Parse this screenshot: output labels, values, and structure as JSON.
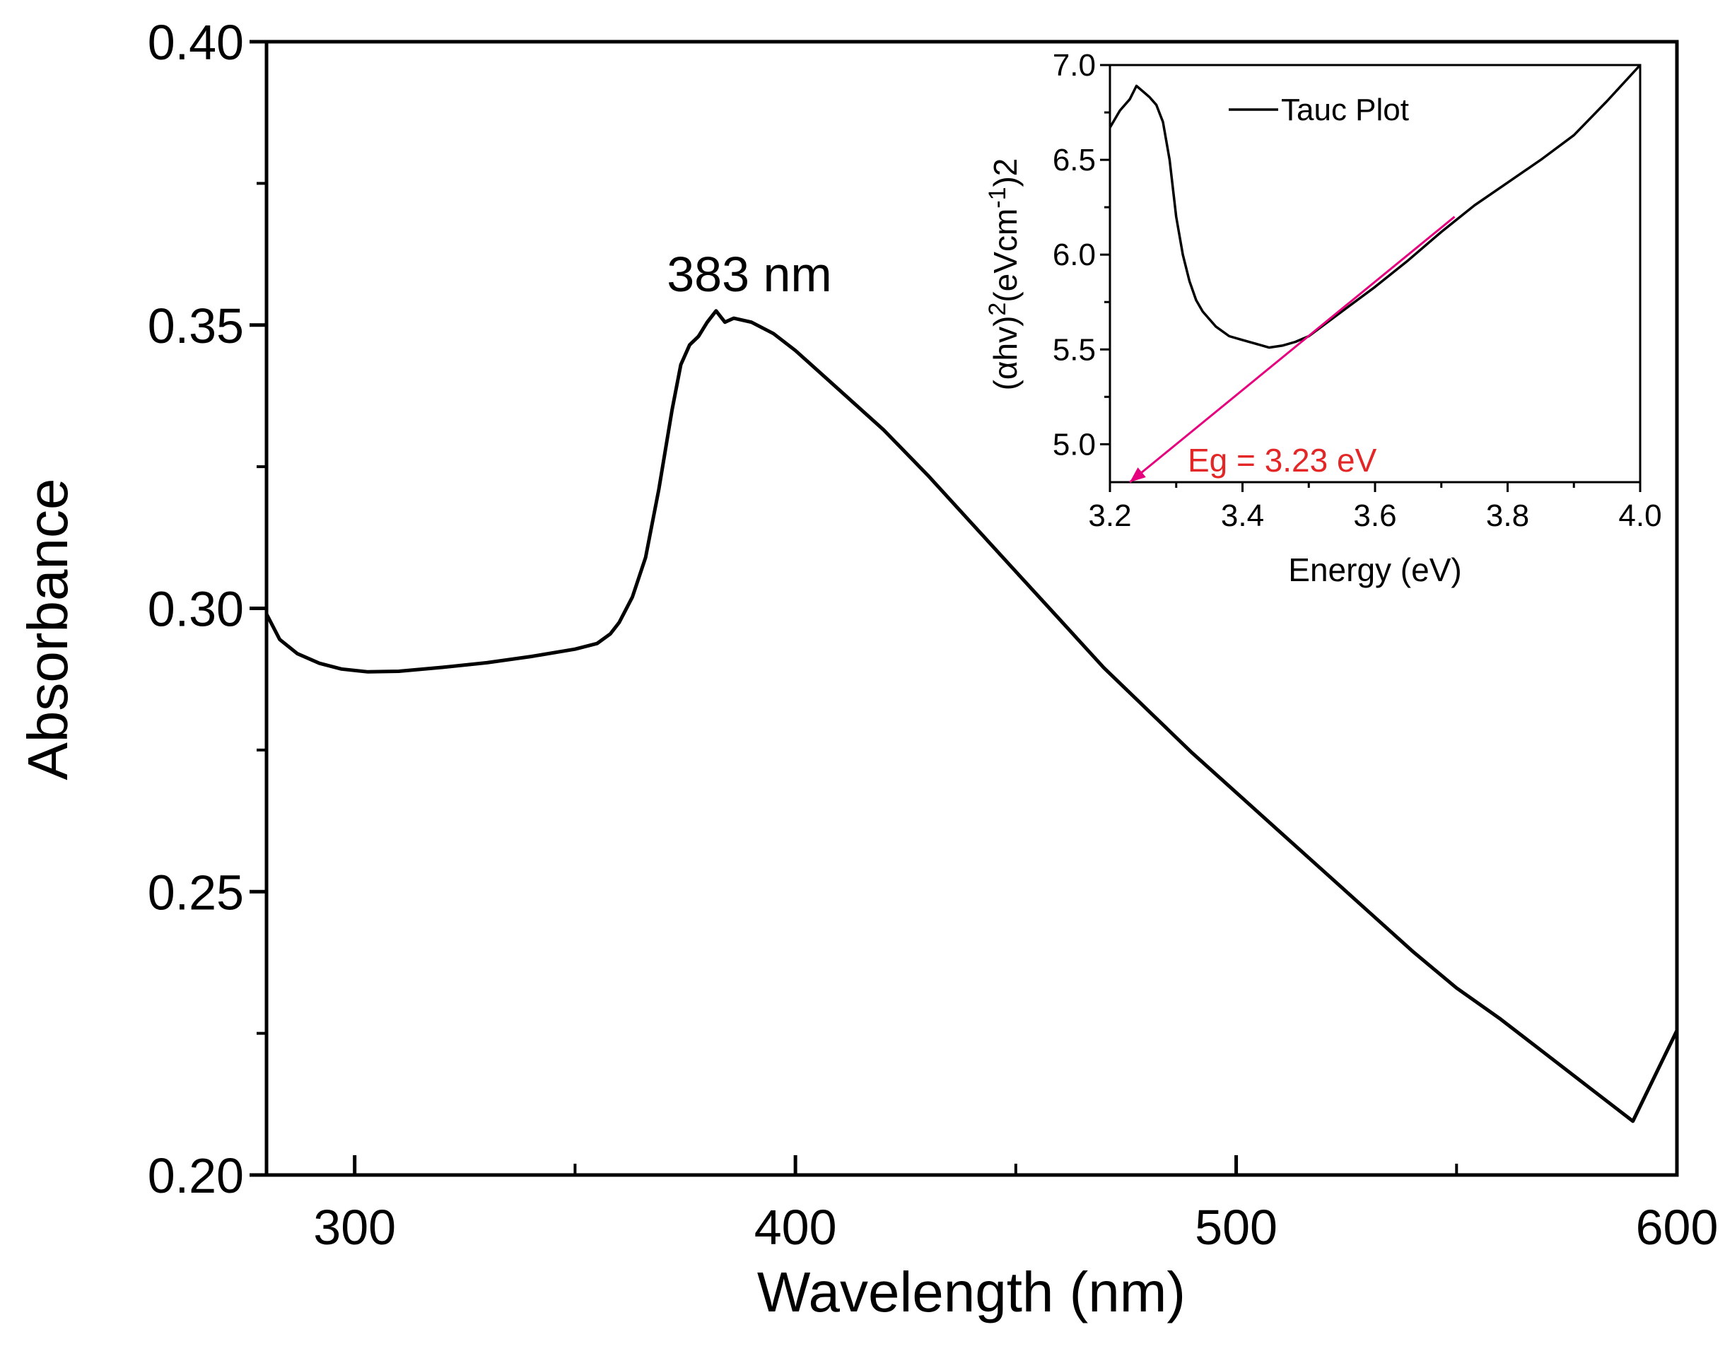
{
  "chart_data": [
    {
      "type": "line",
      "role": "main",
      "xlabel": "Wavelength (nm)",
      "ylabel": "Absorbance",
      "xlim": [
        280,
        600
      ],
      "ylim": [
        0.2,
        0.4
      ],
      "xticks": [
        300,
        400,
        500,
        600
      ],
      "xtick_labels": [
        "300",
        "400",
        "500",
        "600"
      ],
      "yticks": [
        0.2,
        0.25,
        0.3,
        0.35,
        0.4
      ],
      "ytick_labels": [
        "0.20",
        "0.25",
        "0.30",
        "0.35",
        "0.40"
      ],
      "annotation": {
        "text": "383 nm",
        "x": 383,
        "y": 0.353
      },
      "series": [
        {
          "name": "Absorbance",
          "color": "#000000",
          "x": [
            280,
            283,
            287,
            292,
            297,
            303,
            310,
            320,
            330,
            340,
            350,
            355,
            358,
            360,
            363,
            366,
            369,
            372,
            374,
            376,
            378,
            380,
            382,
            383,
            384,
            386,
            390,
            395,
            400,
            410,
            420,
            430,
            440,
            450,
            460,
            470,
            480,
            490,
            500,
            510,
            520,
            530,
            540,
            550,
            560,
            570,
            580,
            590,
            600
          ],
          "y": [
            0.299,
            0.2945,
            0.292,
            0.2903,
            0.2893,
            0.2888,
            0.2889,
            0.2896,
            0.2904,
            0.2915,
            0.2928,
            0.2938,
            0.2955,
            0.2975,
            0.302,
            0.309,
            0.321,
            0.335,
            0.343,
            0.3465,
            0.348,
            0.3505,
            0.3525,
            0.3515,
            0.3505,
            0.3512,
            0.3505,
            0.3485,
            0.3455,
            0.3385,
            0.3315,
            0.3235,
            0.315,
            0.3065,
            0.298,
            0.2895,
            0.282,
            0.2745,
            0.2675,
            0.2605,
            0.2535,
            0.2465,
            0.2395,
            0.233,
            0.2275,
            0.2215,
            0.2155,
            0.2095,
            0.2255
          ]
        }
      ]
    },
    {
      "type": "line",
      "role": "inset",
      "xlabel": "Energy (eV)",
      "ylabel": "(αhv)2(eVcm-1)2",
      "ylabel_parts": {
        "a": "(αhv)",
        "b": "2",
        "c": "(eVcm",
        "d": "-1",
        "e": ")2"
      },
      "xlim": [
        3.2,
        4.0
      ],
      "ylim": [
        4.8,
        7.0
      ],
      "xticks": [
        3.2,
        3.4,
        3.6,
        3.8,
        4.0
      ],
      "xtick_labels": [
        "3.2",
        "3.4",
        "3.6",
        "3.8",
        "4.0"
      ],
      "yticks": [
        5.0,
        5.5,
        6.0,
        6.5,
        7.0
      ],
      "ytick_labels": [
        "5.0",
        "5.5",
        "6.0",
        "6.5",
        "7.0"
      ],
      "legend": {
        "label": "Tauc Plot",
        "placement": "top-center"
      },
      "series": [
        {
          "name": "Tauc Plot",
          "color": "#000000",
          "x": [
            3.2,
            3.215,
            3.23,
            3.24,
            3.25,
            3.26,
            3.27,
            3.28,
            3.29,
            3.3,
            3.31,
            3.32,
            3.33,
            3.34,
            3.35,
            3.36,
            3.38,
            3.4,
            3.42,
            3.44,
            3.46,
            3.48,
            3.5,
            3.55,
            3.6,
            3.65,
            3.7,
            3.75,
            3.8,
            3.85,
            3.9,
            3.95,
            4.0
          ],
          "y": [
            6.67,
            6.76,
            6.82,
            6.89,
            6.86,
            6.83,
            6.79,
            6.7,
            6.5,
            6.2,
            6.0,
            5.86,
            5.76,
            5.7,
            5.66,
            5.62,
            5.57,
            5.55,
            5.53,
            5.51,
            5.52,
            5.54,
            5.57,
            5.7,
            5.83,
            5.97,
            6.12,
            6.26,
            6.38,
            6.5,
            6.63,
            6.81,
            7.0
          ]
        }
      ],
      "fit_line": {
        "color": "#e6007e",
        "x": [
          3.23,
          3.72
        ],
        "y": [
          4.8,
          6.2
        ],
        "label": "Eg = 3.23 eV",
        "label_color": "#e32626"
      }
    }
  ]
}
